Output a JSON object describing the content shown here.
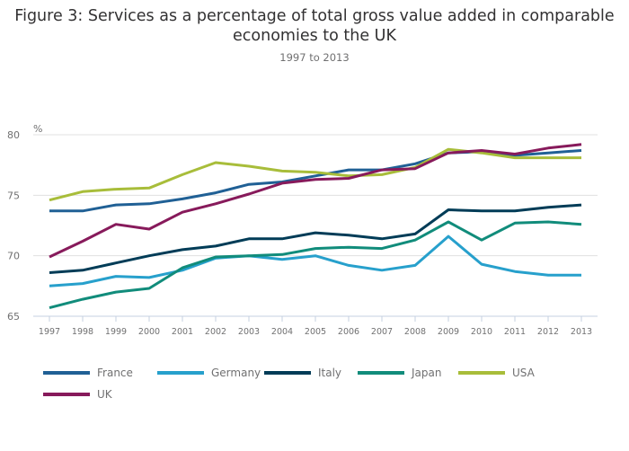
{
  "chart_data": {
    "type": "line",
    "title": "Figure 3: Services as a percentage of total gross value added in comparable economies to the UK",
    "title_lines": [
      "Figure 3: Services as a percentage of total gross value added in comparable",
      "economies to the UK"
    ],
    "subtitle": "1997 to 2013",
    "xlabel": "",
    "ylabel": "%",
    "ylim": [
      65,
      80
    ],
    "yticks": [
      65,
      70,
      75,
      80
    ],
    "grid": true,
    "legend_position": "bottom-left",
    "x": [
      "1997",
      "1998",
      "1999",
      "2000",
      "2001",
      "2002",
      "2003",
      "2004",
      "2005",
      "2006",
      "2007",
      "2008",
      "2009",
      "2010",
      "2011",
      "2012",
      "2013"
    ],
    "series": [
      {
        "name": "France",
        "color": "#206095",
        "values": [
          73.7,
          73.7,
          74.2,
          74.3,
          74.7,
          75.2,
          75.9,
          76.1,
          76.6,
          77.1,
          77.1,
          77.6,
          78.5,
          78.6,
          78.3,
          78.5,
          78.7
        ]
      },
      {
        "name": "Germany",
        "color": "#27a0cc",
        "values": [
          67.5,
          67.7,
          68.3,
          68.2,
          68.8,
          69.8,
          70.0,
          69.7,
          70.0,
          69.2,
          68.8,
          69.2,
          71.6,
          69.3,
          68.7,
          68.4,
          68.4
        ]
      },
      {
        "name": "Italy",
        "color": "#003c57",
        "values": [
          68.6,
          68.8,
          69.4,
          70.0,
          70.5,
          70.8,
          71.4,
          71.4,
          71.9,
          71.7,
          71.4,
          71.8,
          73.8,
          73.7,
          73.7,
          74.0,
          74.2
        ]
      },
      {
        "name": "Japan",
        "color": "#118c7b",
        "values": [
          65.7,
          66.4,
          67.0,
          67.3,
          69.0,
          69.9,
          70.0,
          70.1,
          70.6,
          70.7,
          70.6,
          71.3,
          72.8,
          71.3,
          72.7,
          72.8,
          72.6
        ]
      },
      {
        "name": "USA",
        "color": "#a8bd3a",
        "values": [
          74.6,
          75.3,
          75.5,
          75.6,
          76.7,
          77.7,
          77.4,
          77.0,
          76.9,
          76.6,
          76.7,
          77.3,
          78.8,
          78.5,
          78.1,
          78.1,
          78.1
        ]
      },
      {
        "name": "UK",
        "color": "#871a5b",
        "values": [
          69.9,
          71.2,
          72.6,
          72.2,
          73.6,
          74.3,
          75.1,
          76.0,
          76.3,
          76.4,
          77.1,
          77.2,
          78.5,
          78.7,
          78.4,
          78.9,
          79.2
        ]
      }
    ]
  }
}
